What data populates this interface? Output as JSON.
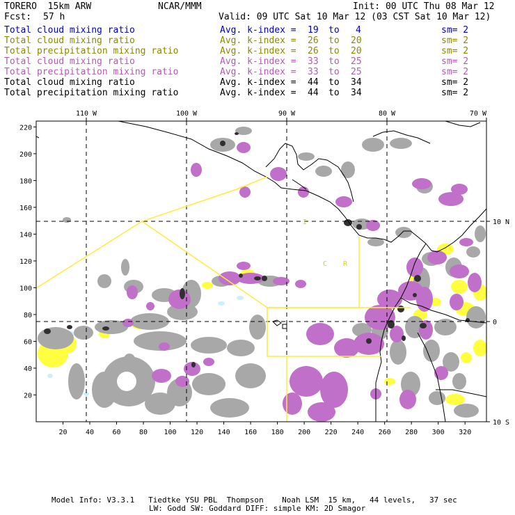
{
  "header": {
    "model": "TORERO  15km ARW",
    "center": "NCAR/MMM",
    "init": "Init: 00 UTC Thu 08 Mar 12",
    "fcst_label": "Fcst:",
    "fcst_value": "57 h",
    "valid": "Valid: 09 UTC Sat 10 Mar 12 (03 CST Sat 10 Mar 12)"
  },
  "legend": [
    {
      "field": "Total cloud mixing ratio",
      "kindex": "Avg. k-index =",
      "k1": "19",
      "to": "to",
      "k2": "4",
      "sm": "sm= 2",
      "color": "#0000c8"
    },
    {
      "field": "Total cloud mixing ratio",
      "kindex": "Avg. k-index =",
      "k1": "26",
      "to": "to",
      "k2": "20",
      "sm": "sm= 2",
      "color": "#8a8a00"
    },
    {
      "field": "Total precipitation mixing ratio",
      "kindex": "Avg. k-index =",
      "k1": "26",
      "to": "to",
      "k2": "20",
      "sm": "sm= 2",
      "color": "#8a8a00"
    },
    {
      "field": "Total cloud mixing ratio",
      "kindex": "Avg. k-index =",
      "k1": "33",
      "to": "to",
      "k2": "25",
      "sm": "sm= 2",
      "color": "#b45ab4"
    },
    {
      "field": "Total precipitation mixing ratio",
      "kindex": "Avg. k-index =",
      "k1": "33",
      "to": "to",
      "k2": "25",
      "sm": "sm= 2",
      "color": "#b45ab4"
    },
    {
      "field": "Total cloud mixing ratio",
      "kindex": "Avg. k-index =",
      "k1": "44",
      "to": "to",
      "k2": "34",
      "sm": "sm= 2",
      "color": "#000000"
    },
    {
      "field": "Total precipitation mixing ratio",
      "kindex": "Avg. k-index =",
      "k1": "44",
      "to": "to",
      "k2": "34",
      "sm": "sm= 2",
      "color": "#000000"
    }
  ],
  "map": {
    "top_axis": [
      "110 W",
      "100 W",
      "90 W",
      "80 W",
      "70 W"
    ],
    "right_axis": [
      "10 N",
      "0",
      "10 S"
    ],
    "left_axis": [
      "220",
      "200",
      "180",
      "160",
      "140",
      "120",
      "100",
      "80",
      "60",
      "40",
      "20"
    ],
    "bottom_axis": [
      "20",
      "40",
      "60",
      "80",
      "100",
      "120",
      "140",
      "160",
      "180",
      "200",
      "220",
      "240",
      "260",
      "280",
      "300",
      "320"
    ],
    "region_labels": [
      "I",
      "C",
      "R"
    ],
    "colors": {
      "cloud_gray": "#a8a8a8",
      "dark_core": "#303030",
      "magenta": "#c070c8",
      "yellow": "#ffff40",
      "cyan": "#c8f0ff",
      "box_line": "#ffeb3b"
    }
  },
  "footer": {
    "line1": "Model Info: V3.3.1   Tiedtke YSU PBL  Thompson    Noah LSM  15 km,   44 levels,   37 sec",
    "line2": "LW: Godd SW: Goddard DIFF: simple KM: 2D Smagor"
  }
}
